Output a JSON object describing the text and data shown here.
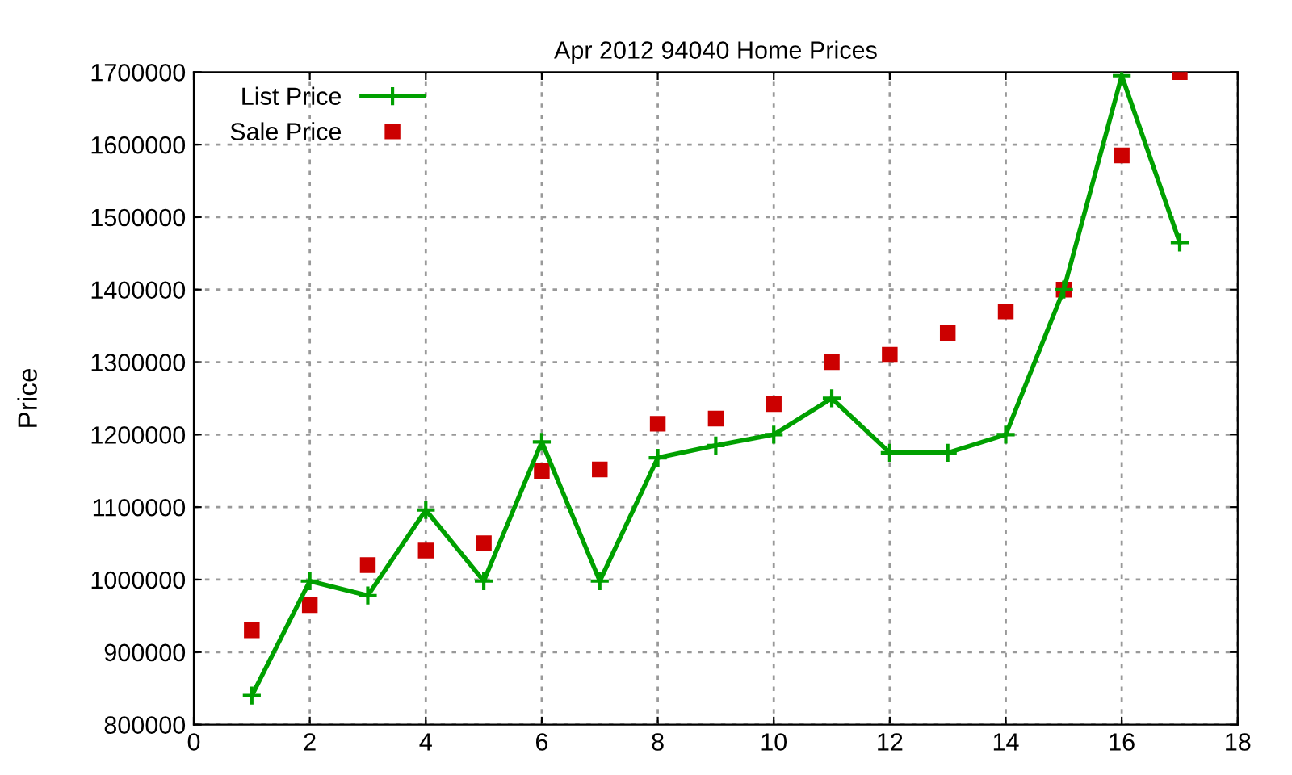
{
  "chart_data": {
    "type": "line",
    "title": "Apr 2012 94040 Home Prices",
    "ylabel": "Price",
    "x": [
      1,
      2,
      3,
      4,
      5,
      6,
      7,
      8,
      9,
      10,
      11,
      12,
      13,
      14,
      15,
      16,
      17
    ],
    "series": [
      {
        "name": "List Price",
        "color": "#00a000",
        "marker": "cross",
        "values": [
          840000,
          998000,
          978000,
          1096000,
          998000,
          1190000,
          998000,
          1168000,
          1185000,
          1200000,
          1250000,
          1175000,
          1175000,
          1200000,
          1400000,
          1695000,
          1465000
        ]
      },
      {
        "name": "Sale Price",
        "type": "scatter",
        "color": "#cc0000",
        "marker": "square",
        "values": [
          930000,
          965000,
          1020000,
          1040000,
          1050000,
          1150000,
          1152000,
          1215000,
          1222000,
          1242000,
          1300000,
          1310000,
          1340000,
          1370000,
          1400000,
          1585000,
          1700000
        ]
      }
    ],
    "xlim": [
      0,
      18
    ],
    "xticks": [
      0,
      2,
      4,
      6,
      8,
      10,
      12,
      14,
      16,
      18
    ],
    "ylim": [
      800000,
      1700000
    ],
    "yticks": [
      800000,
      900000,
      1000000,
      1100000,
      1200000,
      1300000,
      1400000,
      1500000,
      1600000,
      1700000
    ],
    "grid": true,
    "legend": "top left"
  }
}
